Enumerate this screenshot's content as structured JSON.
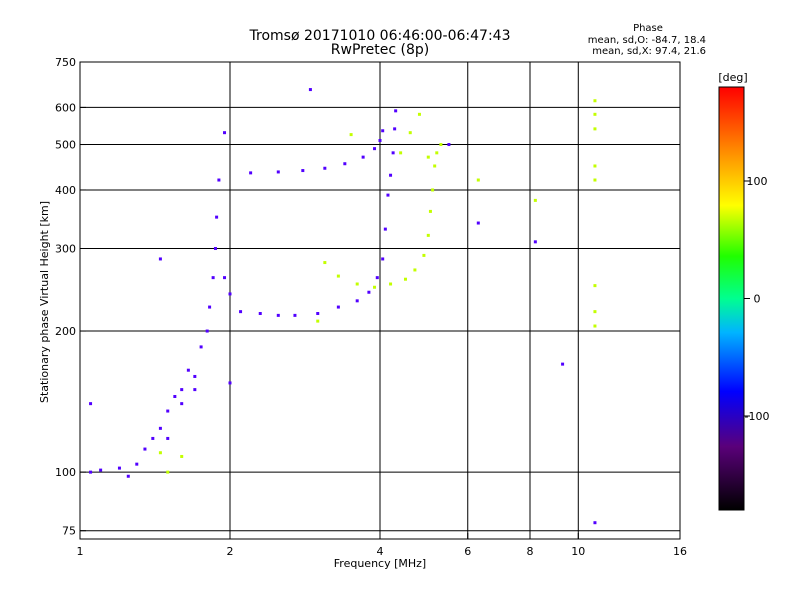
{
  "chart_data": {
    "type": "scatter",
    "title": "Tromsø 20171010 06:46:00-06:47:43",
    "subtitle": "RwPretec (8p)",
    "xlabel": "Frequency [MHz]",
    "ylabel": "Stationary phase Virtual Height [km]",
    "x_scale": "log",
    "y_scale": "log",
    "xlim": [
      1,
      16
    ],
    "ylim": [
      72,
      750
    ],
    "x_ticks": [
      1,
      2,
      4,
      6,
      8,
      10,
      16
    ],
    "x_tick_labels": [
      "1",
      "2",
      "4",
      "6",
      "8",
      "10",
      "16"
    ],
    "y_ticks": [
      75,
      100,
      200,
      300,
      400,
      500,
      600,
      750
    ],
    "y_tick_labels": [
      "75",
      "100",
      "200",
      "300",
      "400",
      "500",
      "600",
      "750"
    ],
    "grid": true,
    "stats": {
      "heading": "Phase",
      "line1": "mean, sd,O: -84.7, 18.4",
      "line2": "mean, sd,X:  97.4, 21.6"
    },
    "colorbar": {
      "label": "[deg]",
      "range": [
        -180,
        180
      ],
      "ticks": [
        100,
        0,
        -100
      ],
      "tick_labels": [
        "100",
        "0",
        "-100"
      ]
    },
    "series": [
      {
        "name": "O-mode",
        "phase_deg": -100,
        "points": [
          [
            1.05,
            100
          ],
          [
            1.1,
            101
          ],
          [
            1.2,
            102
          ],
          [
            1.25,
            98
          ],
          [
            1.3,
            104
          ],
          [
            1.35,
            112
          ],
          [
            1.4,
            118
          ],
          [
            1.45,
            124
          ],
          [
            1.5,
            118
          ],
          [
            1.5,
            135
          ],
          [
            1.55,
            145
          ],
          [
            1.6,
            150
          ],
          [
            1.6,
            140
          ],
          [
            1.65,
            165
          ],
          [
            1.7,
            160
          ],
          [
            1.7,
            150
          ],
          [
            1.75,
            185
          ],
          [
            1.8,
            200
          ],
          [
            1.82,
            225
          ],
          [
            1.85,
            260
          ],
          [
            1.87,
            300
          ],
          [
            1.88,
            350
          ],
          [
            1.9,
            420
          ],
          [
            1.95,
            260
          ],
          [
            2.0,
            240
          ],
          [
            2.1,
            220
          ],
          [
            2.3,
            218
          ],
          [
            2.5,
            216
          ],
          [
            2.7,
            216
          ],
          [
            3.0,
            218
          ],
          [
            3.3,
            225
          ],
          [
            3.6,
            232
          ],
          [
            3.8,
            242
          ],
          [
            3.95,
            260
          ],
          [
            4.05,
            285
          ],
          [
            4.1,
            330
          ],
          [
            4.15,
            390
          ],
          [
            4.2,
            430
          ],
          [
            4.25,
            480
          ],
          [
            4.28,
            540
          ],
          [
            4.3,
            590
          ],
          [
            2.2,
            435
          ],
          [
            2.5,
            437
          ],
          [
            2.8,
            440
          ],
          [
            3.1,
            445
          ],
          [
            3.4,
            455
          ],
          [
            3.7,
            470
          ],
          [
            3.9,
            490
          ],
          [
            4.0,
            510
          ],
          [
            4.05,
            535
          ],
          [
            1.95,
            530
          ],
          [
            2.9,
            655
          ],
          [
            1.45,
            285
          ],
          [
            2.0,
            155
          ],
          [
            5.5,
            500
          ],
          [
            6.3,
            340
          ],
          [
            8.2,
            310
          ],
          [
            9.3,
            170
          ],
          [
            10.8,
            78
          ],
          [
            1.05,
            140
          ]
        ]
      },
      {
        "name": "X-mode",
        "phase_deg": 100,
        "points": [
          [
            3.1,
            280
          ],
          [
            3.3,
            262
          ],
          [
            3.6,
            252
          ],
          [
            3.9,
            248
          ],
          [
            4.2,
            252
          ],
          [
            4.5,
            258
          ],
          [
            4.7,
            270
          ],
          [
            4.9,
            290
          ],
          [
            5.0,
            320
          ],
          [
            5.05,
            360
          ],
          [
            5.1,
            400
          ],
          [
            5.15,
            450
          ],
          [
            5.2,
            480
          ],
          [
            4.4,
            480
          ],
          [
            4.6,
            530
          ],
          [
            4.8,
            580
          ],
          [
            5.0,
            470
          ],
          [
            5.3,
            500
          ],
          [
            3.0,
            210
          ],
          [
            6.3,
            420
          ],
          [
            8.2,
            380
          ],
          [
            10.8,
            620
          ],
          [
            10.8,
            580
          ],
          [
            10.8,
            540
          ],
          [
            10.8,
            450
          ],
          [
            10.8,
            420
          ],
          [
            10.8,
            250
          ],
          [
            10.8,
            220
          ],
          [
            10.8,
            205
          ],
          [
            1.45,
            110
          ],
          [
            1.5,
            100
          ],
          [
            1.6,
            108
          ],
          [
            3.5,
            525
          ]
        ]
      }
    ]
  }
}
